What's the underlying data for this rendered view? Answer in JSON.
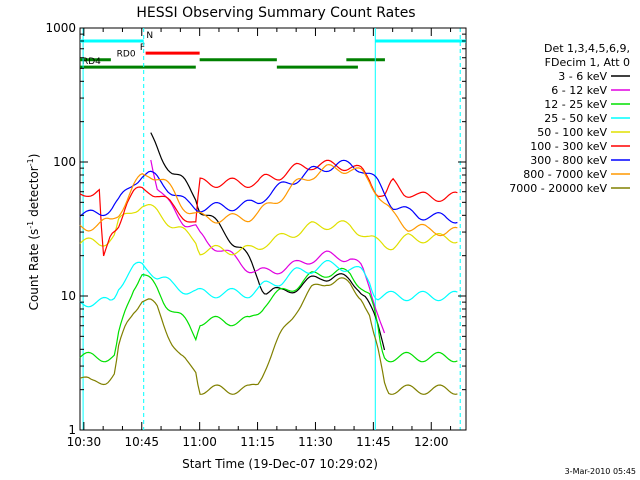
{
  "chart_data": {
    "type": "line",
    "title": "HESSI Observing Summary Count Rates",
    "xlabel": "Start Time (19-Dec-07 10:29:02)",
    "ylabel": "Count Rate (s",
    "ylabel_sup": "-1",
    "ylabel_tail": " detector",
    "ylabel_sup2": "-1",
    "ylabel_close": ")",
    "yscale": "log",
    "ylim": [
      1,
      1000
    ],
    "xlim_minutes": [
      0,
      100
    ],
    "x_ticks": [
      {
        "m": 1,
        "label": "10:30"
      },
      {
        "m": 16,
        "label": "10:45"
      },
      {
        "m": 31,
        "label": "11:00"
      },
      {
        "m": 46,
        "label": "11:15"
      },
      {
        "m": 61,
        "label": "11:30"
      },
      {
        "m": 76,
        "label": "11:45"
      },
      {
        "m": 91,
        "label": "12:00"
      }
    ],
    "y_ticks": [
      {
        "v": 1,
        "label": "1"
      },
      {
        "v": 10,
        "label": "10"
      },
      {
        "v": 100,
        "label": "100"
      },
      {
        "v": 1000,
        "label": "1000"
      }
    ],
    "legend": {
      "placement": "right",
      "header": [
        "Det 1,3,4,5,6,9,",
        "FDecim 1, Att 0"
      ]
    },
    "series": [
      {
        "name": "3 - 6 keV",
        "color": "#000000",
        "x": [
          0,
          5,
          8,
          12,
          14,
          15,
          16,
          17,
          17.6,
          18,
          19,
          21,
          24,
          27,
          30,
          31,
          33,
          36,
          38,
          40,
          42,
          44,
          46,
          47,
          48,
          50,
          52,
          54,
          57,
          60,
          63,
          66,
          70,
          72,
          74,
          77,
          79,
          83,
          86,
          89,
          92,
          95,
          97
        ],
        "y": [
          null,
          null,
          null,
          null,
          null,
          null,
          null,
          null,
          null,
          160,
          140,
          110,
          85,
          70,
          55,
          45,
          40,
          33,
          29,
          25,
          22,
          18,
          14,
          12,
          11,
          11,
          10.5,
          11,
          12,
          13,
          14,
          14,
          13,
          12,
          10,
          6,
          4,
          null,
          null,
          null,
          null,
          null,
          null
        ]
      },
      {
        "name": "6 - 12 keV",
        "color": "#e000e0",
        "x": [
          5,
          8,
          12,
          14,
          15,
          16,
          17,
          17.6,
          18,
          19,
          20,
          22,
          24,
          27,
          30,
          31,
          33,
          36,
          40,
          44,
          46,
          48,
          52,
          56,
          60,
          64,
          67,
          70,
          73,
          75,
          77,
          79,
          82
        ],
        "y": [
          null,
          null,
          null,
          null,
          null,
          null,
          null,
          null,
          125,
          90,
          65,
          52,
          45,
          36,
          32,
          28,
          25,
          23,
          19,
          16,
          15,
          15,
          16,
          17,
          19,
          20,
          20,
          19,
          16,
          12,
          8,
          5,
          null
        ]
      },
      {
        "name": "12 - 25 keV",
        "color": "#00e000",
        "x": [
          0,
          1,
          5,
          7,
          9,
          10,
          12,
          14,
          16,
          18,
          20,
          22,
          24,
          26,
          28,
          30,
          31,
          33,
          36,
          40,
          44,
          46,
          48,
          52,
          56,
          60,
          64,
          67,
          70,
          73,
          75,
          76,
          77,
          78,
          79,
          80,
          82,
          85,
          88,
          90,
          92,
          95,
          98
        ],
        "y": [
          3.5,
          3.5,
          3.5,
          3.5,
          3.5,
          5,
          8,
          12,
          15,
          13,
          11,
          9,
          8,
          7,
          6,
          5,
          6.5,
          6.5,
          6.5,
          6.5,
          6.5,
          7.5,
          9,
          10.5,
          12,
          14,
          15,
          15,
          14.5,
          12,
          10,
          8,
          6,
          4,
          3.5,
          3.5,
          3.5,
          3.5,
          3.5,
          3.5,
          3.5,
          3.5,
          3.5
        ]
      },
      {
        "name": "25 - 50 keV",
        "color": "#00ffff",
        "x": [
          0,
          1,
          5,
          8,
          9,
          10,
          12,
          14,
          16,
          18,
          20,
          22,
          24,
          26,
          28,
          30,
          31,
          33,
          36,
          40,
          44,
          46,
          48,
          52,
          56,
          60,
          64,
          67,
          70,
          73,
          75,
          76,
          77,
          79,
          81,
          83,
          85,
          88,
          90,
          92,
          95,
          98
        ],
        "y": [
          9,
          9,
          9,
          9,
          10,
          12,
          14,
          16,
          17,
          16,
          14,
          13,
          12,
          11.5,
          11,
          10.5,
          10.5,
          10.5,
          10.5,
          10.5,
          10.5,
          11,
          12,
          13,
          15,
          16,
          17,
          17,
          16,
          15,
          13,
          11,
          10,
          10,
          10,
          10,
          10,
          10,
          10,
          10,
          10,
          10
        ]
      },
      {
        "name": "50 - 100 keV",
        "color": "#e0e000",
        "x": [
          0,
          1,
          5,
          7,
          9,
          10,
          12,
          14,
          16,
          18,
          20,
          22,
          24,
          26,
          28,
          30,
          31,
          33,
          36,
          40,
          44,
          46,
          48,
          52,
          56,
          60,
          64,
          67,
          70,
          73,
          75,
          77,
          79,
          81,
          85,
          88,
          90,
          92,
          95,
          98
        ],
        "y": [
          25,
          25,
          25,
          26,
          28,
          35,
          40,
          45,
          48,
          45,
          42,
          38,
          34,
          31,
          28,
          26,
          22,
          22,
          22,
          22,
          22,
          23,
          25,
          27,
          30,
          33,
          34,
          34,
          33,
          30,
          27,
          25,
          24,
          24,
          27,
          27,
          27,
          27,
          27,
          27
        ]
      },
      {
        "name": "100 - 300 keV",
        "color": "#ff0000",
        "x": [
          0,
          2,
          5,
          6,
          7,
          8,
          10,
          12,
          14,
          16,
          18,
          20,
          22,
          24,
          26,
          28,
          30,
          31,
          33,
          36,
          40,
          44,
          46,
          48,
          52,
          56,
          60,
          64,
          67,
          70,
          73,
          75,
          77,
          79,
          81,
          84,
          86,
          88,
          90,
          92,
          95,
          98
        ],
        "y": [
          57,
          60,
          60,
          18,
          22,
          28,
          35,
          50,
          58,
          62,
          62,
          58,
          52,
          46,
          42,
          38,
          34,
          70,
          70,
          70,
          70,
          70,
          70,
          75,
          80,
          90,
          95,
          95,
          95,
          92,
          85,
          75,
          60,
          55,
          70,
          60,
          58,
          55,
          55,
          55,
          55,
          55
        ]
      },
      {
        "name": "300 - 800 keV",
        "color": "#0000ff",
        "x": [
          0,
          2,
          5,
          8,
          10,
          12,
          14,
          16,
          18,
          20,
          22,
          24,
          26,
          28,
          30,
          31,
          33,
          36,
          40,
          44,
          46,
          48,
          52,
          56,
          60,
          64,
          67,
          70,
          73,
          75,
          77,
          79,
          81,
          83,
          85,
          88,
          90,
          92,
          95,
          98
        ],
        "y": [
          40,
          40,
          42,
          45,
          50,
          60,
          72,
          80,
          80,
          75,
          68,
          60,
          53,
          48,
          46,
          46,
          46,
          46,
          47,
          48,
          50,
          56,
          65,
          75,
          85,
          92,
          95,
          95,
          90,
          80,
          70,
          58,
          48,
          45,
          42,
          40,
          40,
          39,
          38,
          38
        ]
      },
      {
        "name": "800 - 7000 keV",
        "color": "#ff9900",
        "x": [
          0,
          2,
          5,
          8,
          10,
          12,
          14,
          16,
          18,
          20,
          22,
          24,
          26,
          28,
          30,
          32,
          36,
          40,
          44,
          46,
          48,
          52,
          56,
          60,
          64,
          67,
          70,
          73,
          75,
          77,
          79,
          81,
          83,
          85,
          88,
          90,
          92,
          95,
          98
        ],
        "y": [
          33,
          33,
          34,
          36,
          42,
          52,
          65,
          78,
          82,
          78,
          70,
          60,
          50,
          44,
          40,
          38,
          38,
          38,
          39,
          41,
          45,
          55,
          68,
          80,
          88,
          90,
          88,
          82,
          72,
          60,
          48,
          40,
          36,
          33,
          32,
          31,
          31,
          30,
          30
        ]
      },
      {
        "name": "7000 - 20000 keV",
        "color": "#808000",
        "x": [
          0,
          3,
          5,
          7,
          9,
          10,
          12,
          14,
          16,
          18,
          20,
          22,
          24,
          26,
          28,
          30,
          31,
          33,
          36,
          40,
          44,
          46,
          48,
          52,
          56,
          60,
          64,
          67,
          70,
          73,
          75,
          76,
          77,
          78,
          79,
          80,
          82,
          85,
          88,
          90,
          92,
          95,
          98
        ],
        "y": [
          2.5,
          2.2,
          2.3,
          2.4,
          2.6,
          4,
          6,
          8,
          9.5,
          9,
          8,
          6,
          4.5,
          3.5,
          3,
          2.8,
          2,
          2,
          2,
          2,
          2,
          2.2,
          3,
          5,
          8,
          11,
          13,
          13,
          12,
          10,
          7,
          5,
          4,
          3,
          2.2,
          2,
          2,
          2,
          2,
          2,
          2,
          2,
          2
        ]
      }
    ],
    "state_bars": [
      {
        "label": "N",
        "color": "#00ffff",
        "segments": [
          [
            0,
            16.5
          ],
          [
            76.5,
            100
          ]
        ],
        "level": 800
      },
      {
        "label": "F",
        "color": "#ff0000",
        "segments": [
          [
            17,
            31
          ]
        ],
        "level": 650
      },
      {
        "label": "RD0",
        "color": "#008000",
        "segments": [
          [
            0,
            8
          ],
          [
            31,
            51
          ],
          [
            69,
            79
          ]
        ],
        "level": 580
      },
      {
        "label": "RD4",
        "color": "#008000",
        "segments": [
          [
            0,
            30
          ],
          [
            51,
            72
          ]
        ],
        "level": 510
      }
    ],
    "markers_dashed": [
      16.5,
      98.5
    ],
    "markers_solid": [
      0.8,
      76.5
    ],
    "annotation_date": "3-Mar-2010 05:45"
  }
}
